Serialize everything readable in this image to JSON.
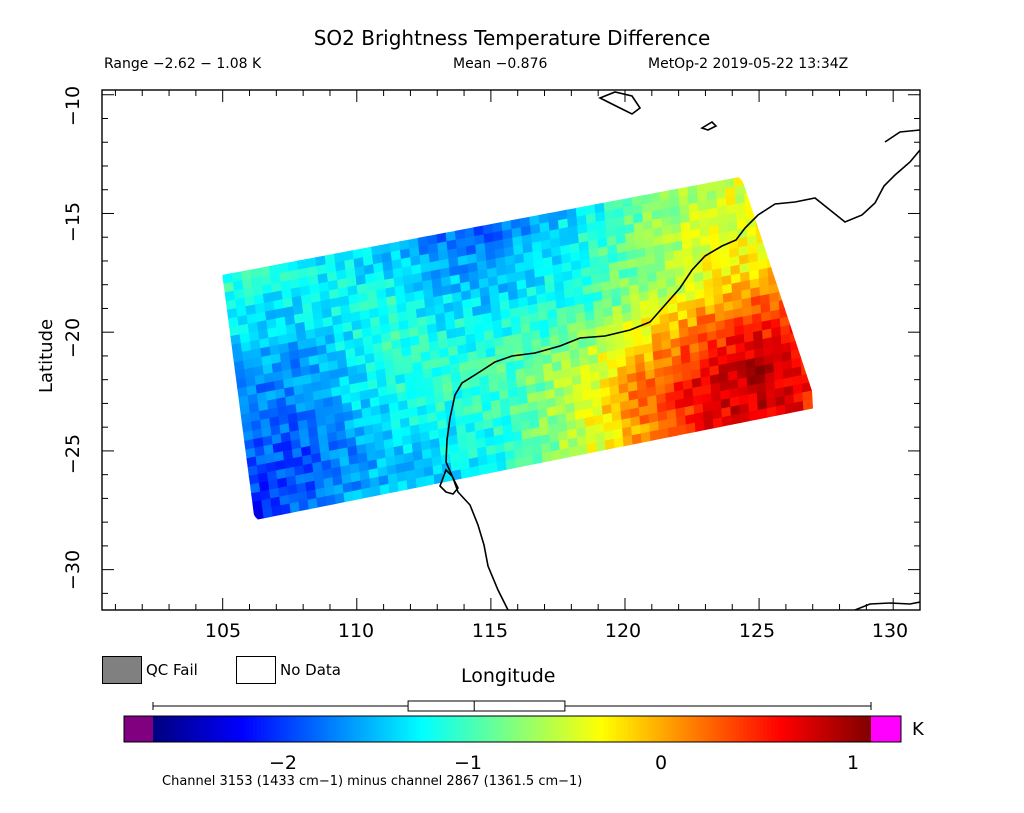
{
  "title": "SO2 Brightness Temperature Difference",
  "header": {
    "range": "Range −2.62 − 1.08 K",
    "mean": "Mean −0.876",
    "satellite_time": "MetOp-2 2019-05-22 13:34Z"
  },
  "axes": {
    "xlabel": "Longitude",
    "ylabel": "Latitude",
    "x_ticks": [
      "105",
      "110",
      "115",
      "120",
      "125",
      "130"
    ],
    "y_ticks": [
      "−10",
      "−15",
      "−20",
      "−25",
      "−30"
    ]
  },
  "legend": {
    "qc_fail": "QC Fail",
    "no_data": "No Data",
    "qc_fail_color": "#808080",
    "no_data_color": "#ffffff"
  },
  "colorbar": {
    "ticks": [
      "−2",
      "−1",
      "0",
      "1"
    ],
    "unit": "K",
    "underflow_color": "#800080",
    "overflow_color": "#ff00ff"
  },
  "footnote": "Channel 3153 (1433 cm−1) minus channel 2867 (1361.5 cm−1)",
  "chart_data": {
    "type": "heatmap",
    "title": "SO2 Brightness Temperature Difference",
    "xlabel": "Longitude",
    "ylabel": "Latitude",
    "xlim": [
      100.5,
      131
    ],
    "ylim": [
      -31.7,
      -9.8
    ],
    "value_range": [
      -2.62,
      1.08
    ],
    "mean": -0.876,
    "colorbar_range": [
      -2.7,
      1.1
    ],
    "units": "K",
    "swath_corners_lonlat": [
      [
        105,
        -17.6
      ],
      [
        126.5,
        -13
      ],
      [
        127,
        -23.2
      ],
      [
        106.2,
        -27.9
      ]
    ],
    "grid_values": [
      [
        -1.0,
        -1.2,
        -1.3,
        -1.5,
        -1.8,
        -1.9,
        -1.6,
        -1.3,
        -0.9,
        -0.6,
        -0.4,
        -0.3
      ],
      [
        -1.3,
        -1.4,
        -1.3,
        -1.2,
        -1.5,
        -1.6,
        -1.4,
        -1.1,
        -0.8,
        -0.5,
        -0.4,
        -0.3
      ],
      [
        -1.6,
        -1.7,
        -1.4,
        -1.1,
        -1.2,
        -1.3,
        -1.2,
        -1.0,
        -0.7,
        -0.4,
        -0.2,
        -0.1
      ],
      [
        -1.8,
        -1.8,
        -1.5,
        -1.2,
        -1.1,
        -1.0,
        -0.8,
        -0.5,
        -0.1,
        0.3,
        0.5,
        0.4
      ],
      [
        -1.9,
        -2.0,
        -1.7,
        -1.4,
        -1.3,
        -1.1,
        -0.7,
        -0.2,
        0.4,
        0.7,
        0.9,
        0.6
      ],
      [
        -2.2,
        -1.8,
        -1.6,
        -1.5,
        -1.4,
        -1.2,
        -0.8,
        -0.3,
        0.2,
        0.6,
        0.8,
        0.5
      ]
    ]
  }
}
